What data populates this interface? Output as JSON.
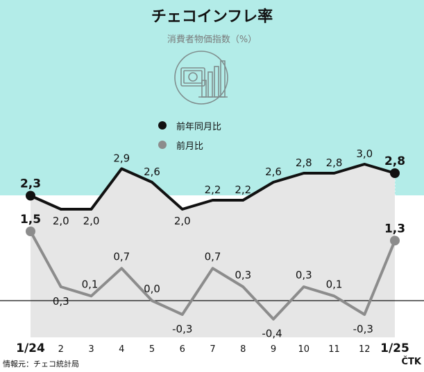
{
  "chart_data": {
    "type": "line",
    "title": "チェコインフレ率",
    "subtitle": "消費者物価指数（%）",
    "categories": [
      "1/24",
      "2",
      "3",
      "4",
      "5",
      "6",
      "7",
      "8",
      "9",
      "10",
      "11",
      "12",
      "1/25"
    ],
    "series": [
      {
        "name": "前年同月比",
        "color": "#111111",
        "values": [
          2.3,
          2.0,
          2.0,
          2.9,
          2.6,
          2.0,
          2.2,
          2.2,
          2.6,
          2.8,
          2.8,
          3.0,
          2.8
        ],
        "labels": [
          "2,3",
          "2,0",
          "2,0",
          "2,9",
          "2,6",
          "2,0",
          "2,2",
          "2,2",
          "2,6",
          "2,8",
          "2,8",
          "3,0",
          "2,8"
        ]
      },
      {
        "name": "前月比",
        "color": "#8c8c8c",
        "values": [
          1.5,
          0.3,
          0.1,
          0.7,
          0.0,
          -0.3,
          0.7,
          0.3,
          -0.4,
          0.3,
          0.1,
          -0.3,
          1.3
        ],
        "labels": [
          "1,5",
          "0,3",
          "0,1",
          "0,7",
          "0,0",
          "-0,3",
          "0,7",
          "0,3",
          "-0,4",
          "0,3",
          "0,1",
          "-0,3",
          "1,3"
        ]
      }
    ],
    "source": "情報元：チェコ統計局",
    "credit": "ČTK",
    "colors": {
      "top_background": "#b3ece8",
      "fill": "#e6e6e6",
      "yoy": "#111111",
      "mom": "#8c8c8c"
    }
  }
}
